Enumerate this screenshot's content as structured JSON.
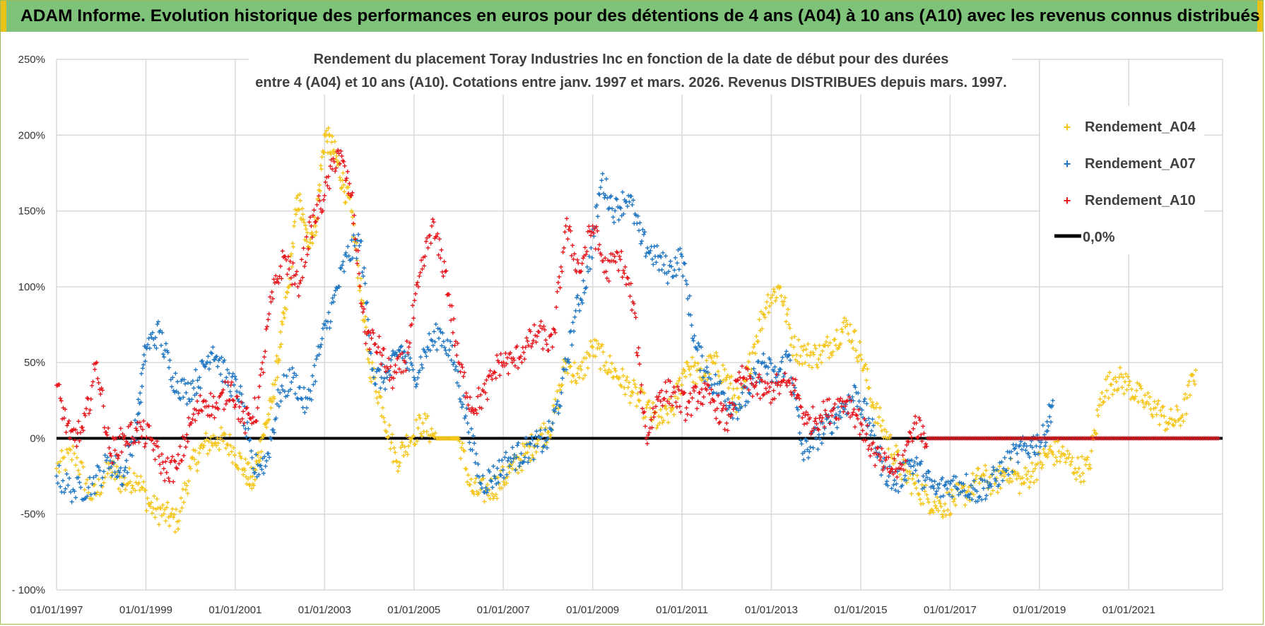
{
  "header": {
    "title": "ADAM Informe. Evolution historique des performances en euros pour des détentions de 4 ans (A04) à 10 ans (A10) avec les revenus connus distribués"
  },
  "chart_data": {
    "type": "scatter",
    "title_line1": "Rendement du placement Toray Industries Inc en fonction de la date de début pour des durées",
    "title_line2": "entre 4 (A04) et 10 ans (A10).  Cotations entre janv. 1997 et mars. 2026. Revenus DISTRIBUES depuis mars. 1997.",
    "xlim": [
      1997.0,
      2023.1
    ],
    "ylim": [
      -100,
      250
    ],
    "y_ticks": [
      {
        "value": 250,
        "label": "250%"
      },
      {
        "value": 200,
        "label": "200%"
      },
      {
        "value": 150,
        "label": "150%"
      },
      {
        "value": 100,
        "label": "100%"
      },
      {
        "value": 50,
        "label": "50%"
      },
      {
        "value": 0,
        "label": "0%"
      },
      {
        "value": -50,
        "label": "-50%"
      },
      {
        "value": -100,
        "label": "- 100%"
      }
    ],
    "x_ticks": [
      {
        "value": 1997,
        "label": "01/01/1997"
      },
      {
        "value": 1999,
        "label": "01/01/1999"
      },
      {
        "value": 2001,
        "label": "01/01/2001"
      },
      {
        "value": 2003,
        "label": "01/01/2003"
      },
      {
        "value": 2005,
        "label": "01/01/2005"
      },
      {
        "value": 2007,
        "label": "01/01/2007"
      },
      {
        "value": 2009,
        "label": "01/01/2009"
      },
      {
        "value": 2011,
        "label": "01/01/2011"
      },
      {
        "value": 2013,
        "label": "01/01/2013"
      },
      {
        "value": 2015,
        "label": "01/01/2015"
      },
      {
        "value": 2017,
        "label": "01/01/2017"
      },
      {
        "value": 2019,
        "label": "01/01/2019"
      },
      {
        "value": 2021,
        "label": "01/01/2021"
      }
    ],
    "zero_line": {
      "name": "0,0%",
      "value": 0,
      "color": "#000000"
    },
    "series": [
      {
        "name": "Rendement_A04",
        "color": "#f5c518",
        "x": [
          1997.0,
          1997.4,
          1997.8,
          1998.2,
          1998.5,
          1998.8,
          1999.1,
          1999.4,
          1999.7,
          2000.0,
          2000.3,
          2000.6,
          2000.9,
          2001.2,
          2001.4,
          2001.6,
          2001.8,
          2002.0,
          2002.2,
          2002.4,
          2002.6,
          2002.8,
          2003.0,
          2003.2,
          2003.4,
          2003.6,
          2003.8,
          2004.0,
          2004.3,
          2004.6,
          2004.9,
          2005.2,
          2005.5,
          2005.8,
          2006.0,
          2006.3,
          2006.6,
          2006.9,
          2007.2,
          2007.5,
          2007.8,
          2008.1,
          2008.4,
          2008.7,
          2009.0,
          2009.3,
          2009.6,
          2009.9,
          2010.2,
          2010.5,
          2010.8,
          2011.1,
          2011.4,
          2011.7,
          2012.0,
          2012.3,
          2012.6,
          2012.9,
          2013.2,
          2013.5,
          2013.8,
          2014.1,
          2014.4,
          2014.7,
          2015.0,
          2015.3,
          2015.6,
          2015.9,
          2016.2,
          2016.5,
          2016.8,
          2017.1,
          2017.4,
          2017.7,
          2018.0,
          2018.3,
          2018.6,
          2018.9,
          2019.2,
          2019.5,
          2019.8,
          2020.1,
          2020.4,
          2020.7,
          2021.0,
          2021.3,
          2021.6,
          2021.9,
          2022.2,
          2022.5
        ],
        "y": [
          -20,
          -10,
          -40,
          -20,
          -30,
          -25,
          -45,
          -50,
          -55,
          -20,
          -5,
          0,
          -5,
          -20,
          -30,
          0,
          20,
          60,
          100,
          160,
          130,
          140,
          200,
          190,
          170,
          150,
          100,
          50,
          20,
          -15,
          0,
          10,
          0,
          0,
          0,
          -35,
          -35,
          -30,
          -20,
          -10,
          0,
          10,
          50,
          40,
          60,
          50,
          40,
          30,
          20,
          10,
          20,
          50,
          40,
          50,
          40,
          20,
          60,
          90,
          100,
          60,
          55,
          55,
          65,
          75,
          55,
          20,
          0,
          -20,
          -30,
          -40,
          -45,
          -40,
          -35,
          -25,
          -30,
          -20,
          -30,
          -20,
          -10,
          -10,
          -20,
          -20,
          30,
          40,
          35,
          25,
          20,
          10,
          15,
          45
        ]
      },
      {
        "name": "Rendement_A07",
        "color": "#1f77c4",
        "x": [
          1997.0,
          1997.4,
          1997.8,
          1998.2,
          1998.5,
          1998.8,
          1999.0,
          1999.3,
          1999.6,
          1999.9,
          2000.2,
          2000.5,
          2000.8,
          2001.1,
          2001.4,
          2001.7,
          2002.0,
          2002.3,
          2002.6,
          2002.9,
          2003.2,
          2003.5,
          2003.8,
          2004.1,
          2004.4,
          2004.7,
          2005.0,
          2005.3,
          2005.6,
          2005.9,
          2006.2,
          2006.5,
          2006.8,
          2007.1,
          2007.4,
          2007.7,
          2008.0,
          2008.3,
          2008.6,
          2008.9,
          2009.2,
          2009.5,
          2009.8,
          2010.1,
          2010.4,
          2010.7,
          2011.0,
          2011.3,
          2011.6,
          2011.9,
          2012.2,
          2012.5,
          2012.8,
          2013.1,
          2013.4,
          2013.7,
          2014.0,
          2014.3,
          2014.6,
          2014.9,
          2015.2,
          2015.5,
          2015.8,
          2016.1,
          2016.4,
          2016.7,
          2017.0,
          2017.3,
          2017.6,
          2017.9,
          2018.2,
          2018.5,
          2018.8,
          2019.1,
          2019.3
        ],
        "y": [
          -25,
          -35,
          -30,
          -15,
          -25,
          10,
          60,
          70,
          40,
          30,
          40,
          60,
          40,
          30,
          -20,
          -15,
          30,
          40,
          20,
          60,
          90,
          120,
          130,
          40,
          40,
          60,
          40,
          60,
          70,
          50,
          10,
          -30,
          -25,
          -15,
          -10,
          -5,
          0,
          30,
          80,
          110,
          170,
          150,
          160,
          130,
          120,
          110,
          120,
          60,
          40,
          30,
          20,
          30,
          50,
          40,
          55,
          -10,
          0,
          10,
          20,
          30,
          10,
          -20,
          -30,
          -15,
          -25,
          -35,
          -30,
          -30,
          -35,
          -30,
          -20,
          -10,
          -5,
          0,
          25
        ]
      },
      {
        "name": "Rendement_A10",
        "color": "#e8141b",
        "x": [
          1997.0,
          1997.3,
          1997.6,
          1997.9,
          1998.2,
          1998.5,
          1998.8,
          1999.1,
          1999.4,
          1999.7,
          2000.0,
          2000.3,
          2000.6,
          2000.9,
          2001.2,
          2001.5,
          2001.8,
          2002.1,
          2002.4,
          2002.7,
          2003.0,
          2003.3,
          2003.6,
          2003.9,
          2004.2,
          2004.5,
          2004.8,
          2005.1,
          2005.4,
          2005.7,
          2006.0,
          2006.3,
          2006.6,
          2006.9,
          2007.2,
          2007.5,
          2007.8,
          2008.1,
          2008.4,
          2008.7,
          2009.0,
          2009.3,
          2009.6,
          2009.9,
          2010.2,
          2010.5,
          2010.8,
          2011.1,
          2011.4,
          2011.7,
          2012.0,
          2012.3,
          2012.6,
          2012.9,
          2013.2,
          2013.5,
          2013.8,
          2014.1,
          2014.4,
          2014.7,
          2015.0,
          2015.3,
          2015.6,
          2015.9,
          2016.2,
          2016.5,
          2017.0,
          2017.5,
          2018.0,
          2018.5,
          2019.0,
          2019.5,
          2020.0,
          2020.5,
          2021.0,
          2021.5,
          2022.0,
          2022.5,
          2023.0
        ],
        "y": [
          35,
          0,
          5,
          50,
          -10,
          0,
          5,
          0,
          -20,
          -20,
          10,
          25,
          20,
          35,
          10,
          20,
          90,
          120,
          100,
          140,
          160,
          190,
          160,
          70,
          60,
          40,
          50,
          100,
          140,
          110,
          50,
          20,
          30,
          50,
          50,
          60,
          70,
          60,
          140,
          110,
          140,
          110,
          120,
          90,
          0,
          30,
          30,
          20,
          30,
          25,
          10,
          40,
          35,
          30,
          35,
          35,
          10,
          15,
          20,
          25,
          10,
          -10,
          -20,
          -20,
          10,
          0,
          0,
          0,
          0,
          0,
          0,
          0,
          0,
          0,
          0,
          0,
          0,
          0,
          0
        ]
      }
    ]
  }
}
